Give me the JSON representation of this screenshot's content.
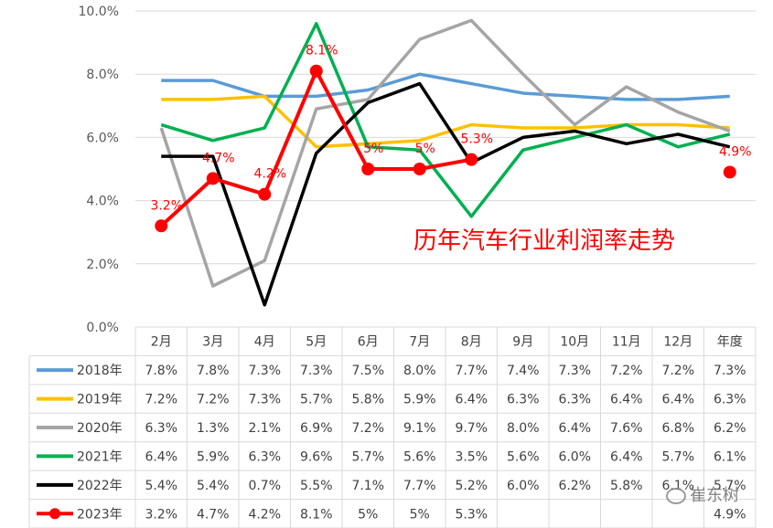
{
  "chart_data": {
    "type": "line",
    "title": "历年汽车行业利润率走势",
    "categories": [
      "2月",
      "3月",
      "4月",
      "5月",
      "6月",
      "7月",
      "8月",
      "9月",
      "10月",
      "11月",
      "12月",
      "年度"
    ],
    "y_ticks": [
      "0.0%",
      "2.0%",
      "4.0%",
      "6.0%",
      "8.0%",
      "10.0%"
    ],
    "ylim": [
      0,
      10
    ],
    "grid": true,
    "legend": "table-left",
    "series": [
      {
        "name": "2018年",
        "color": "#5b9bd5",
        "marker": false,
        "values": [
          7.8,
          7.8,
          7.3,
          7.3,
          7.5,
          8.0,
          7.7,
          7.4,
          7.3,
          7.2,
          7.2,
          7.3
        ],
        "labels": [
          "7.8%",
          "7.8%",
          "7.3%",
          "7.3%",
          "7.5%",
          "8.0%",
          "7.7%",
          "7.4%",
          "7.3%",
          "7.2%",
          "7.2%",
          "7.3%"
        ]
      },
      {
        "name": "2019年",
        "color": "#ffc000",
        "marker": false,
        "values": [
          7.2,
          7.2,
          7.3,
          5.7,
          5.8,
          5.9,
          6.4,
          6.3,
          6.3,
          6.4,
          6.4,
          6.3
        ],
        "labels": [
          "7.2%",
          "7.2%",
          "7.3%",
          "5.7%",
          "5.8%",
          "5.9%",
          "6.4%",
          "6.3%",
          "6.3%",
          "6.4%",
          "6.4%",
          "6.3%"
        ]
      },
      {
        "name": "2020年",
        "color": "#a5a5a5",
        "marker": false,
        "values": [
          6.3,
          1.3,
          2.1,
          6.9,
          7.2,
          9.1,
          9.7,
          8.0,
          6.4,
          7.6,
          6.8,
          6.2
        ],
        "labels": [
          "6.3%",
          "1.3%",
          "2.1%",
          "6.9%",
          "7.2%",
          "9.1%",
          "9.7%",
          "8.0%",
          "6.4%",
          "7.6%",
          "6.8%",
          "6.2%"
        ]
      },
      {
        "name": "2021年",
        "color": "#00b050",
        "marker": false,
        "values": [
          6.4,
          5.9,
          6.3,
          9.6,
          5.7,
          5.6,
          3.5,
          5.6,
          6.0,
          6.4,
          5.7,
          6.1
        ],
        "labels": [
          "6.4%",
          "5.9%",
          "6.3%",
          "9.6%",
          "5.7%",
          "5.6%",
          "3.5%",
          "5.6%",
          "6.0%",
          "6.4%",
          "5.7%",
          "6.1%"
        ]
      },
      {
        "name": "2022年",
        "color": "#000000",
        "marker": false,
        "values": [
          5.4,
          5.4,
          0.7,
          5.5,
          7.1,
          7.7,
          5.2,
          6.0,
          6.2,
          5.8,
          6.1,
          5.7
        ],
        "labels": [
          "5.4%",
          "5.4%",
          "0.7%",
          "5.5%",
          "7.1%",
          "7.7%",
          "5.2%",
          "6.0%",
          "6.2%",
          "5.8%",
          "6.1%",
          "5.7%"
        ]
      },
      {
        "name": "2023年",
        "color": "#ff0000",
        "marker": true,
        "values": [
          3.2,
          4.7,
          4.2,
          8.1,
          5.0,
          5.0,
          5.3,
          null,
          null,
          null,
          null,
          4.9
        ],
        "labels": [
          "3.2%",
          "4.7%",
          "4.2%",
          "8.1%",
          "5%",
          "5%",
          "5.3%",
          "",
          "",
          "",
          "",
          "4.9%"
        ]
      }
    ]
  },
  "watermark": "崔东树"
}
